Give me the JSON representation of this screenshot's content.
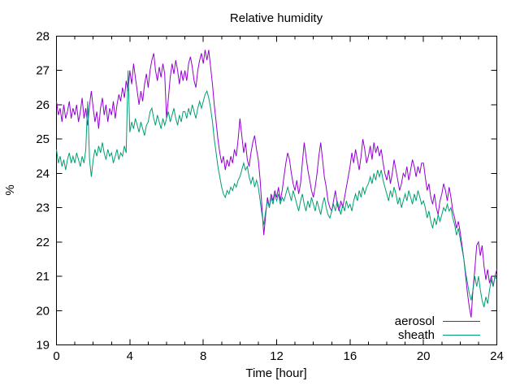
{
  "figure": {
    "background": "#ffffff",
    "text_color": "#000000"
  },
  "chart_data": {
    "type": "line",
    "title": "Relative humidity",
    "xlabel": "Time [hour]",
    "ylabel": "%",
    "xlim": [
      0,
      24
    ],
    "ylim": [
      19,
      28
    ],
    "x_major_ticks": [
      0,
      4,
      8,
      12,
      16,
      20,
      24
    ],
    "x_minor_step": 1,
    "y_major_ticks": [
      19,
      20,
      21,
      22,
      23,
      24,
      25,
      26,
      27,
      28
    ],
    "grid": false,
    "border": true,
    "legend_position": "bottom-right-inside",
    "series": [
      {
        "name": "aerosol",
        "color": "#9400d3",
        "x_start": 0,
        "x_step": 0.1,
        "values": [
          26.1,
          25.7,
          25.9,
          25.5,
          26.0,
          25.6,
          25.8,
          26.1,
          25.6,
          25.9,
          25.7,
          26.0,
          25.5,
          25.8,
          26.2,
          25.6,
          25.9,
          25.4,
          26.0,
          26.4,
          25.9,
          25.5,
          25.8,
          25.3,
          25.9,
          26.2,
          25.7,
          26.0,
          25.5,
          25.9,
          25.7,
          26.1,
          25.6,
          26.0,
          26.3,
          26.1,
          26.5,
          26.2,
          26.7,
          26.4,
          27.0,
          26.6,
          27.2,
          26.8,
          26.4,
          26.0,
          26.4,
          26.1,
          26.6,
          26.9,
          26.5,
          27.0,
          27.3,
          27.5,
          27.0,
          26.7,
          27.1,
          26.8,
          27.2,
          26.9,
          25.6,
          26.2,
          26.8,
          27.2,
          26.9,
          27.3,
          27.0,
          26.6,
          27.0,
          26.7,
          27.0,
          26.7,
          27.2,
          27.4,
          27.1,
          26.7,
          26.5,
          27.0,
          27.3,
          27.5,
          27.2,
          27.6,
          27.3,
          27.6,
          27.1,
          26.6,
          26.0,
          25.5,
          25.0,
          24.6,
          24.3,
          24.5,
          24.1,
          24.4,
          24.2,
          24.5,
          24.3,
          24.7,
          24.5,
          25.0,
          25.6,
          25.1,
          24.6,
          24.9,
          24.4,
          24.2,
          24.6,
          24.9,
          25.1,
          24.7,
          24.4,
          23.8,
          23.0,
          22.2,
          22.8,
          23.3,
          23.0,
          23.4,
          23.2,
          23.5,
          23.3,
          23.6,
          23.2,
          23.5,
          23.9,
          24.3,
          24.6,
          24.4,
          24.0,
          23.7,
          23.5,
          23.8,
          23.4,
          23.7,
          24.3,
          24.9,
          24.5,
          24.1,
          23.8,
          23.5,
          23.3,
          23.6,
          24.0,
          24.5,
          24.9,
          24.4,
          23.9,
          23.6,
          23.2,
          23.0,
          22.9,
          23.2,
          23.5,
          23.1,
          22.9,
          23.2,
          23.0,
          23.3,
          23.6,
          23.9,
          24.2,
          24.6,
          24.3,
          24.7,
          24.4,
          24.1,
          24.5,
          25.0,
          24.7,
          24.3,
          24.5,
          24.8,
          24.4,
          24.9,
          24.6,
          24.8,
          24.5,
          24.7,
          24.3,
          24.0,
          23.8,
          24.1,
          23.7,
          24.0,
          24.4,
          24.1,
          23.8,
          23.5,
          23.7,
          24.0,
          23.9,
          24.2,
          23.8,
          24.1,
          24.4,
          24.2,
          23.9,
          24.2,
          24.0,
          24.3,
          24.3,
          23.9,
          23.5,
          23.7,
          23.3,
          23.1,
          23.4,
          23.0,
          22.8,
          23.2,
          23.4,
          23.7,
          23.5,
          23.2,
          23.6,
          23.3,
          22.9,
          22.7,
          22.4,
          22.6,
          22.3,
          21.9,
          21.5,
          21.0,
          20.5,
          20.1,
          19.8,
          20.6,
          21.2,
          21.9,
          22.0,
          21.6,
          21.9,
          21.3,
          20.9,
          21.2,
          20.8,
          21.0,
          20.7,
          21.0,
          21.2
        ]
      },
      {
        "name": "sheath",
        "color": "#009e73",
        "x_start": 0,
        "x_step": 0.1,
        "values": [
          24.7,
          24.3,
          24.5,
          24.2,
          24.4,
          24.1,
          24.4,
          24.6,
          24.3,
          24.5,
          24.3,
          24.6,
          24.4,
          24.2,
          24.5,
          24.3,
          24.7,
          26.1,
          24.4,
          23.9,
          24.4,
          24.7,
          24.5,
          24.8,
          24.6,
          24.9,
          24.6,
          24.4,
          24.7,
          24.5,
          24.6,
          24.3,
          24.5,
          24.7,
          24.4,
          24.6,
          24.5,
          24.8,
          24.6,
          27.0,
          25.2,
          25.5,
          25.3,
          25.6,
          25.4,
          25.2,
          25.5,
          25.3,
          25.1,
          25.4,
          25.5,
          25.8,
          25.9,
          25.6,
          25.4,
          25.7,
          25.5,
          25.3,
          25.6,
          25.4,
          25.6,
          25.8,
          25.5,
          25.7,
          25.9,
          25.6,
          25.4,
          25.7,
          25.5,
          25.8,
          25.8,
          25.6,
          25.9,
          25.7,
          26.0,
          25.8,
          25.6,
          25.9,
          26.1,
          25.9,
          26.1,
          26.3,
          26.4,
          26.2,
          25.9,
          25.5,
          25.0,
          24.6,
          24.2,
          23.9,
          23.6,
          23.4,
          23.3,
          23.5,
          23.4,
          23.6,
          23.5,
          23.7,
          23.6,
          23.8,
          23.9,
          24.1,
          24.3,
          24.1,
          24.2,
          23.9,
          23.7,
          23.9,
          23.6,
          23.8,
          23.6,
          23.2,
          22.8,
          22.5,
          22.9,
          23.2,
          23.0,
          23.3,
          23.1,
          23.4,
          23.2,
          23.4,
          23.1,
          23.3,
          23.2,
          23.4,
          23.6,
          23.4,
          23.2,
          23.5,
          23.3,
          23.1,
          22.9,
          23.2,
          23.4,
          23.1,
          22.9,
          23.2,
          23.0,
          23.3,
          23.1,
          22.9,
          23.2,
          23.0,
          22.8,
          23.1,
          23.3,
          23.0,
          22.8,
          22.7,
          22.9,
          23.1,
          22.9,
          23.2,
          23.0,
          22.8,
          23.1,
          22.9,
          23.2,
          23.0,
          23.1,
          22.9,
          23.2,
          23.4,
          23.2,
          23.5,
          23.3,
          23.6,
          23.4,
          23.6,
          23.7,
          23.9,
          23.7,
          24.0,
          23.8,
          24.1,
          23.9,
          24.1,
          23.8,
          23.6,
          23.4,
          23.2,
          23.5,
          23.3,
          23.6,
          23.4,
          23.1,
          23.3,
          23.0,
          23.2,
          23.4,
          23.2,
          23.5,
          23.3,
          23.1,
          23.4,
          23.2,
          23.5,
          23.3,
          23.1,
          23.2,
          23.0,
          22.7,
          22.9,
          22.6,
          22.4,
          22.7,
          22.5,
          22.8,
          22.6,
          22.8,
          23.0,
          22.9,
          23.1,
          22.9,
          23.0,
          22.7,
          22.5,
          22.2,
          22.4,
          22.1,
          21.8,
          21.5,
          21.1,
          20.8,
          20.5,
          20.3,
          20.6,
          21.0,
          20.7,
          21.0,
          20.6,
          20.3,
          20.1,
          20.4,
          20.2,
          20.6,
          20.9,
          20.7,
          21.0,
          20.9
        ]
      }
    ]
  }
}
